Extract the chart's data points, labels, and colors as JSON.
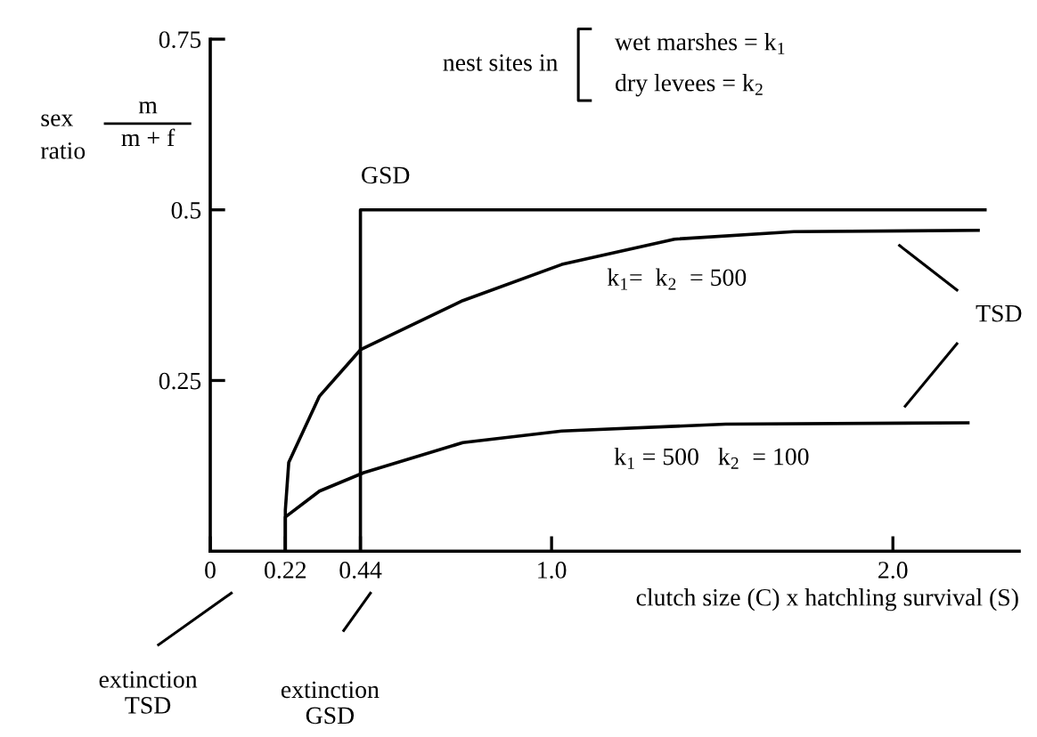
{
  "chart_data": {
    "type": "line",
    "ylabel": "sex ratio",
    "series": [
      {
        "color": "#000000",
        "x": [
          0.44,
          0.44,
          2.27
        ],
        "values": [
          0,
          0.5,
          0.5
        ]
      },
      {
        "color": "#000000",
        "x": [
          0.22,
          0.22,
          0.23,
          0.32,
          0.44,
          0.74,
          1.03,
          1.36,
          1.71,
          2.25
        ],
        "values": [
          0,
          0.06,
          0.13,
          0.227,
          0.295,
          0.367,
          0.42,
          0.457,
          0.468,
          0.47
        ]
      },
      {
        "color": "#000000",
        "x": [
          0.22,
          0.22,
          0.32,
          0.45,
          0.74,
          1.03,
          1.51,
          2.22
        ],
        "values": [
          0,
          0.05,
          0.088,
          0.115,
          0.159,
          0.176,
          0.186,
          0.188
        ]
      }
    ],
    "xlim": [
      0,
      2.37
    ],
    "ylim": [
      0,
      0.75
    ],
    "xticks": [
      0,
      0.22,
      0.44,
      {
        "value": 1.0,
        "label": "1.0"
      },
      {
        "value": 2.0,
        "label": "2.0"
      }
    ],
    "yticks": [
      0.25,
      0.5,
      0.75
    ],
    "xlabel": "clutch size (C) x hatchling survival (S)",
    "annotations": [
      "m",
      "m + f",
      "nest sites in",
      "wet marshes = k$_{1}$",
      "dry levees = k$_{2}$",
      "GSD",
      "k$_{1}$=  k$_{2}$  = 500",
      "k$_{1}$ = 500   k$_{2}$  = 100",
      "TSD",
      "extinction\nTSD",
      "extinction\nGSD"
    ],
    "grid": false,
    "legend": false,
    "marker": "none",
    "line_style": "solid"
  }
}
